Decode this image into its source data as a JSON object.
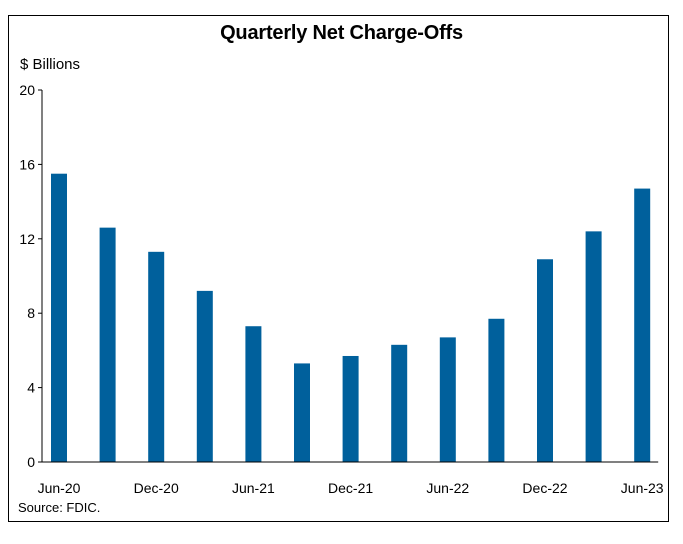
{
  "chart_data": {
    "type": "bar",
    "title": "Quarterly Net Charge-Offs",
    "ylabel": "$ Billions",
    "source": "Source: FDIC.",
    "ylim": [
      0,
      20
    ],
    "yticks": [
      0,
      4,
      8,
      12,
      16,
      20
    ],
    "categories": [
      "Jun-20",
      "Sep-20",
      "Dec-20",
      "Mar-21",
      "Jun-21",
      "Sep-21",
      "Dec-21",
      "Mar-22",
      "Jun-22",
      "Sep-22",
      "Dec-22",
      "Mar-23",
      "Jun-23"
    ],
    "x_tick_labels": [
      "Jun-20",
      "Dec-20",
      "Jun-21",
      "Dec-21",
      "Jun-22",
      "Dec-22",
      "Jun-23"
    ],
    "values": [
      15.5,
      12.6,
      11.3,
      9.2,
      7.3,
      5.3,
      5.7,
      6.3,
      6.7,
      7.7,
      10.9,
      12.4,
      14.7
    ],
    "bar_color": "#00609c",
    "grid": false
  }
}
